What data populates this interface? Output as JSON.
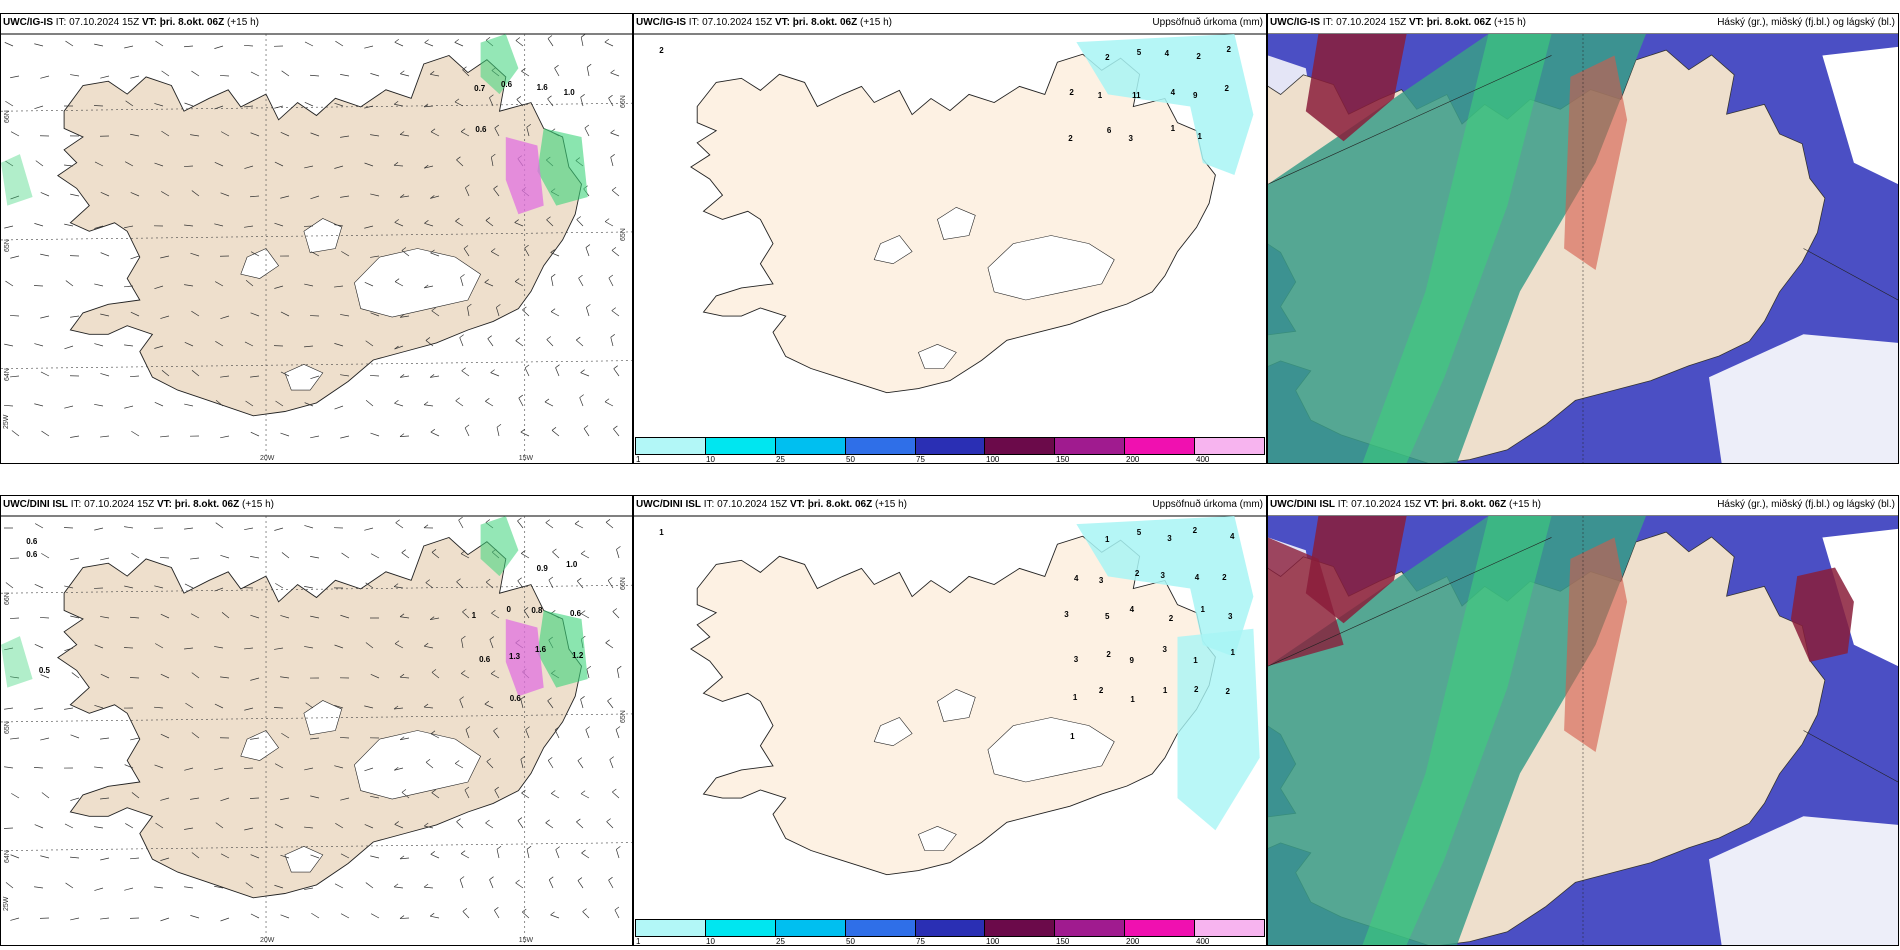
{
  "panels": [
    {
      "id": "ig-is-wind",
      "model": "UWC/IG-IS",
      "it_label": "IT:",
      "it": "07.10.2024 15Z",
      "vt_label": "VT:",
      "vt": "þri. 8.okt. 06Z",
      "lead": "(+15 h)",
      "right_title": "",
      "grid_labels": [
        "66N",
        "65N",
        "64N",
        "25W",
        "20W",
        "15W"
      ],
      "values": [
        "0.7",
        "0.6",
        "1.6",
        "1.0",
        "0.6"
      ]
    },
    {
      "id": "ig-is-precip",
      "model": "UWC/IG-IS",
      "it_label": "IT:",
      "it": "07.10.2024 15Z",
      "vt_label": "VT:",
      "vt": "þri. 8.okt. 06Z",
      "lead": "(+15 h)",
      "right_title": "Uppsöfnuð úrkoma (mm)",
      "values": [
        "2",
        "2",
        "5",
        "4",
        "2",
        "2",
        "2",
        "1",
        "11",
        "4",
        "9",
        "2",
        "2",
        "6",
        "3",
        "1",
        "1"
      ]
    },
    {
      "id": "ig-is-cloud",
      "model": "UWC/IG-IS",
      "it_label": "IT:",
      "it": "07.10.2024 15Z",
      "vt_label": "VT:",
      "vt": "þri. 8.okt. 06Z",
      "lead": "(+15 h)",
      "right_title": "Háský (gr.), miðský (fj.bl.) og lágský (bl.)"
    },
    {
      "id": "dini-wind",
      "model": "UWC/DINI ISL",
      "it_label": "IT:",
      "it": "07.10.2024 15Z",
      "vt_label": "VT:",
      "vt": "þri. 8.okt. 06Z",
      "lead": "(+15 h)",
      "right_title": "",
      "grid_labels": [
        "66N",
        "65N",
        "64N",
        "25W",
        "20W",
        "15W"
      ],
      "values": [
        "0.6",
        "0.6",
        "0.9",
        "1.0",
        "1",
        "0",
        "0.8",
        "0.6",
        "0.6",
        "1.3",
        "1.6",
        "1.2",
        "0.5",
        "0.6"
      ]
    },
    {
      "id": "dini-precip",
      "model": "UWC/DINI ISL",
      "it_label": "IT:",
      "it": "07.10.2024 15Z",
      "vt_label": "VT:",
      "vt": "þri. 8.okt. 06Z",
      "lead": "(+15 h)",
      "right_title": "Uppsöfnuð úrkoma (mm)",
      "values": [
        "1",
        "1",
        "5",
        "3",
        "2",
        "4",
        "4",
        "3",
        "2",
        "3",
        "4",
        "2",
        "3",
        "5",
        "4",
        "2",
        "1",
        "3",
        "3",
        "2",
        "9",
        "3",
        "1",
        "1",
        "1",
        "2",
        "1",
        "1",
        "2",
        "2",
        "1"
      ]
    },
    {
      "id": "dini-cloud",
      "model": "UWC/DINI ISL",
      "it_label": "IT:",
      "it": "07.10.2024 15Z",
      "vt_label": "VT:",
      "vt": "þri. 8.okt. 06Z",
      "lead": "(+15 h)",
      "right_title": "Háský (gr.), miðský (fj.bl.) og lágský (bl.)"
    }
  ],
  "colorbar": {
    "labels": [
      "1",
      "10",
      "25",
      "50",
      "75",
      "100",
      "150",
      "200",
      "400"
    ],
    "colors": [
      "#b2f7f7",
      "#00e6f0",
      "#00bff0",
      "#2f6fe8",
      "#2a2fb4",
      "#6b0a4a",
      "#a01b8f",
      "#f010b0",
      "#f7b4ef"
    ]
  },
  "map_colors": {
    "land": "#eedfcc",
    "land_precip": "#fdf1e3",
    "precip_light": "#a8f5f5",
    "high_cloud": "#3a9e88",
    "mid_cloud": "#8a1d3a",
    "low_cloud": "#4b4fc4",
    "green": "#3cd47a",
    "pink": "#e070e0"
  }
}
